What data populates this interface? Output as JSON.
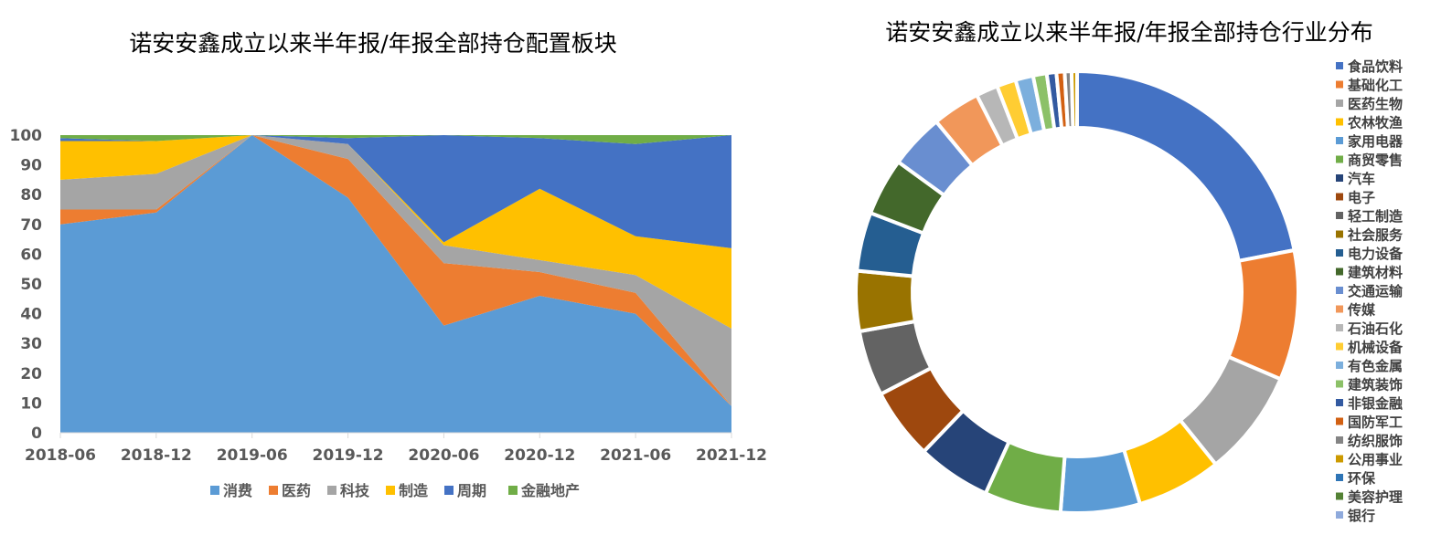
{
  "chart_data": [
    {
      "type": "area",
      "stacked": true,
      "title": "诺安安鑫成立以来半年报/年报全部持仓配置板块",
      "xlabel": "",
      "ylabel": "",
      "categories": [
        "2018-06",
        "2018-12",
        "2019-06",
        "2019-12",
        "2020-06",
        "2020-12",
        "2021-06",
        "2021-12"
      ],
      "ylim": [
        0,
        100
      ],
      "yticks": [
        0,
        10,
        20,
        30,
        40,
        50,
        60,
        70,
        80,
        90,
        100
      ],
      "grid": false,
      "legend_position": "bottom",
      "series": [
        {
          "name": "消费",
          "color": "#5B9BD5",
          "values": [
            70,
            74,
            100,
            79,
            36,
            46,
            40,
            9
          ]
        },
        {
          "name": "医药",
          "color": "#ED7D31",
          "values": [
            5,
            1,
            0,
            13,
            21,
            8,
            7,
            0
          ]
        },
        {
          "name": "科技",
          "color": "#A5A5A5",
          "values": [
            10,
            12,
            0,
            5,
            6,
            4,
            6,
            26
          ]
        },
        {
          "name": "制造",
          "color": "#FFC000",
          "values": [
            13,
            11,
            0,
            0,
            1,
            24,
            13,
            27
          ]
        },
        {
          "name": "周期",
          "color": "#4472C4",
          "values": [
            1,
            0,
            0,
            2,
            36,
            17,
            31,
            38
          ]
        },
        {
          "name": "金融地产",
          "color": "#70AD47",
          "values": [
            1,
            2,
            0,
            1,
            0,
            1,
            3,
            0
          ]
        }
      ]
    },
    {
      "type": "pie",
      "donut": true,
      "title": "诺安安鑫成立以来半年报/年报全部持仓行业分布",
      "legend_position": "right",
      "categories": [
        "食品饮料",
        "基础化工",
        "医药生物",
        "农林牧渔",
        "家用电器",
        "商贸零售",
        "汽车",
        "电子",
        "轻工制造",
        "社会服务",
        "电力设备",
        "建筑材料",
        "交通运输",
        "传媒",
        "石油石化",
        "机械设备",
        "有色金属",
        "建筑装饰",
        "非银金融",
        "国防军工",
        "纺织服饰",
        "公用事业",
        "环保",
        "美容护理",
        "银行"
      ],
      "values": [
        22.0,
        9.5,
        7.8,
        6.2,
        5.8,
        5.6,
        5.4,
        5.2,
        4.8,
        4.4,
        4.3,
        4.2,
        4.0,
        3.5,
        1.6,
        1.4,
        1.3,
        1.0,
        0.7,
        0.6,
        0.5,
        0.4,
        0.0,
        0.0,
        0.0
      ],
      "colors": [
        "#4472C4",
        "#ED7D31",
        "#A5A5A5",
        "#FFC000",
        "#5B9BD5",
        "#70AD47",
        "#264478",
        "#9E480E",
        "#636363",
        "#997300",
        "#255E91",
        "#43682B",
        "#698ED0",
        "#F1975A",
        "#B7B7B7",
        "#FFCD33",
        "#7CAFDD",
        "#8CC168",
        "#335AA1",
        "#D26012",
        "#848484",
        "#CC9A00",
        "#2E75B6",
        "#548235",
        "#8FAADC"
      ]
    }
  ]
}
